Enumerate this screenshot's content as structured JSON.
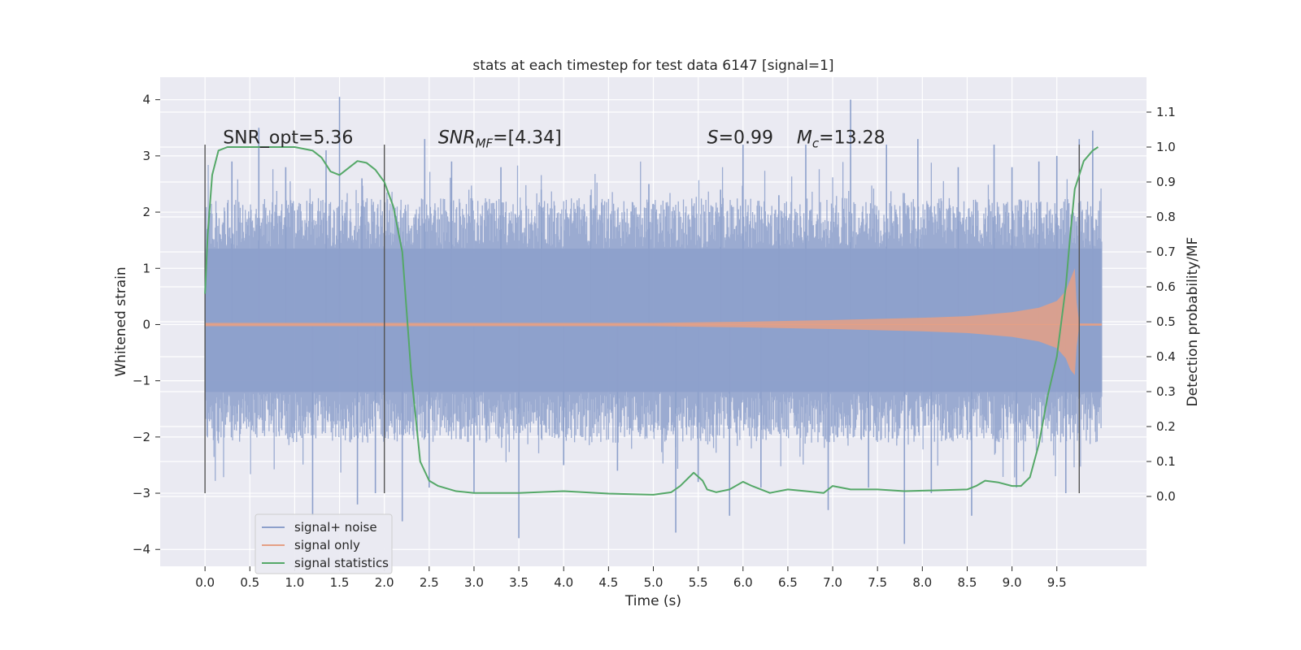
{
  "chart_data": {
    "type": "line",
    "title": "stats at each timestep for test data 6147 [signal=1]",
    "xlabel": "Time (s)",
    "ylabel": "Whitened strain",
    "y2label": "Detection probability/MF",
    "xlim": [
      -0.5,
      10.5
    ],
    "ylim": [
      -4.3,
      4.4
    ],
    "y2lim": [
      -0.2,
      1.2
    ],
    "x_ticks": [
      0.0,
      0.5,
      1.0,
      1.5,
      2.0,
      2.5,
      3.0,
      3.5,
      4.0,
      4.5,
      5.0,
      5.5,
      6.0,
      6.5,
      7.0,
      7.5,
      8.0,
      8.5,
      9.0,
      9.5
    ],
    "x_tick_labels": [
      "0.0",
      "0.5",
      "1.0",
      "1.5",
      "2.0",
      "2.5",
      "3.0",
      "3.5",
      "4.0",
      "4.5",
      "5.0",
      "5.5",
      "6.0",
      "6.5",
      "7.0",
      "7.5",
      "8.0",
      "8.5",
      "9.0",
      "9.5"
    ],
    "y_ticks": [
      -4,
      -3,
      -2,
      -1,
      0,
      1,
      2,
      3,
      4
    ],
    "y_tick_labels": [
      "−4",
      "−3",
      "−2",
      "−1",
      "0",
      "1",
      "2",
      "3",
      "4"
    ],
    "y2_ticks": [
      0.0,
      0.1,
      0.2,
      0.3,
      0.4,
      0.5,
      0.6,
      0.7,
      0.8,
      0.9,
      1.0,
      1.1
    ],
    "y2_tick_labels": [
      "0.0",
      "0.1",
      "0.2",
      "0.3",
      "0.4",
      "0.5",
      "0.6",
      "0.7",
      "0.8",
      "0.9",
      "1.0",
      "1.1"
    ],
    "grid": true,
    "legend_position": "lower-left",
    "colors": {
      "noise": "#8da0cb",
      "signal": "#e5a085",
      "stats": "#55a868",
      "vline": "#555555",
      "background": "#eaeaf2"
    },
    "series": [
      {
        "name": "signal+ noise",
        "role": "noise",
        "axis": "left",
        "x_range": [
          0.0,
          10.0
        ],
        "samples": 1400,
        "envelope": {
          "x": [
            0.0,
            10.0
          ],
          "upper": [
            1.35,
            1.35
          ],
          "lower": [
            -1.2,
            -1.2
          ]
        },
        "spikes": [
          [
            0.3,
            2.9
          ],
          [
            0.6,
            3.5
          ],
          [
            0.9,
            2.8
          ],
          [
            1.2,
            -3.4
          ],
          [
            1.35,
            3.1
          ],
          [
            1.5,
            4.05
          ],
          [
            1.7,
            -3.2
          ],
          [
            1.75,
            2.6
          ],
          [
            1.9,
            -3.0
          ],
          [
            2.2,
            -3.5
          ],
          [
            2.45,
            3.3
          ],
          [
            2.5,
            -2.9
          ],
          [
            2.75,
            2.9
          ],
          [
            3.0,
            -3.0
          ],
          [
            3.3,
            2.8
          ],
          [
            3.5,
            -3.8
          ],
          [
            3.75,
            2.4
          ],
          [
            4.0,
            -2.5
          ],
          [
            4.3,
            2.3
          ],
          [
            4.6,
            -2.6
          ],
          [
            4.95,
            2.5
          ],
          [
            5.25,
            -3.7
          ],
          [
            5.5,
            -2.8
          ],
          [
            5.75,
            2.4
          ],
          [
            5.85,
            -3.4
          ],
          [
            6.0,
            3.2
          ],
          [
            6.2,
            -2.9
          ],
          [
            6.4,
            2.3
          ],
          [
            6.7,
            3.2
          ],
          [
            6.95,
            -3.3
          ],
          [
            7.2,
            4.0
          ],
          [
            7.4,
            -2.9
          ],
          [
            7.6,
            3.2
          ],
          [
            7.8,
            -3.9
          ],
          [
            7.95,
            3.3
          ],
          [
            8.1,
            -3.0
          ],
          [
            8.4,
            2.8
          ],
          [
            8.55,
            -3.4
          ],
          [
            8.8,
            3.2
          ],
          [
            9.0,
            2.8
          ],
          [
            9.05,
            -2.9
          ],
          [
            9.3,
            2.9
          ],
          [
            9.5,
            3.0
          ],
          [
            9.6,
            -3.0
          ],
          [
            9.75,
            3.3
          ],
          [
            9.9,
            3.45
          ]
        ]
      },
      {
        "name": "signal only",
        "role": "signal",
        "axis": "left",
        "envelope": {
          "x": [
            0.0,
            5.0,
            6.0,
            7.0,
            8.0,
            8.5,
            9.0,
            9.3,
            9.5,
            9.6,
            9.65,
            9.7,
            9.72,
            9.75,
            10.0
          ],
          "upper": [
            0.03,
            0.03,
            0.05,
            0.08,
            0.12,
            0.15,
            0.22,
            0.3,
            0.42,
            0.6,
            0.8,
            1.0,
            0.4,
            0.02,
            0.02
          ],
          "lower": [
            -0.03,
            -0.03,
            -0.05,
            -0.08,
            -0.12,
            -0.15,
            -0.22,
            -0.3,
            -0.42,
            -0.6,
            -0.8,
            -0.9,
            -0.4,
            -0.02,
            -0.02
          ]
        }
      },
      {
        "name": "signal statistics",
        "role": "stats",
        "axis": "right",
        "x": [
          0.0,
          0.03,
          0.08,
          0.15,
          0.25,
          0.5,
          1.0,
          1.2,
          1.3,
          1.4,
          1.5,
          1.6,
          1.7,
          1.8,
          1.9,
          2.0,
          2.1,
          2.2,
          2.3,
          2.4,
          2.5,
          2.6,
          2.8,
          3.0,
          3.5,
          4.0,
          4.5,
          5.0,
          5.2,
          5.3,
          5.45,
          5.55,
          5.6,
          5.7,
          5.85,
          6.0,
          6.1,
          6.3,
          6.5,
          6.7,
          6.9,
          7.0,
          7.2,
          7.5,
          7.8,
          8.5,
          8.6,
          8.7,
          8.85,
          9.0,
          9.1,
          9.2,
          9.3,
          9.4,
          9.5,
          9.6,
          9.65,
          9.7,
          9.8,
          9.9,
          9.96
        ],
        "y": [
          0.58,
          0.75,
          0.92,
          0.99,
          1.0,
          1.0,
          1.0,
          0.99,
          0.97,
          0.93,
          0.92,
          0.94,
          0.96,
          0.955,
          0.935,
          0.9,
          0.83,
          0.7,
          0.35,
          0.1,
          0.045,
          0.03,
          0.015,
          0.01,
          0.01,
          0.015,
          0.008,
          0.005,
          0.012,
          0.03,
          0.068,
          0.045,
          0.02,
          0.012,
          0.02,
          0.042,
          0.03,
          0.01,
          0.02,
          0.015,
          0.01,
          0.03,
          0.02,
          0.02,
          0.015,
          0.02,
          0.03,
          0.045,
          0.04,
          0.03,
          0.03,
          0.055,
          0.15,
          0.29,
          0.4,
          0.6,
          0.75,
          0.88,
          0.96,
          0.99,
          1.0
        ]
      }
    ],
    "vlines": [
      {
        "x": 0.0,
        "y_from": -3.0,
        "y_to": 3.2
      },
      {
        "x": 2.0,
        "y_from": -3.0,
        "y_to": 3.2
      },
      {
        "x": 9.75,
        "y_from": -3.0,
        "y_to": 3.2
      }
    ],
    "annotations": [
      {
        "text": "SNR_opt=5.36",
        "x": 0.2,
        "y": 3.22
      },
      {
        "text": "SNR_MF=[4.34]",
        "x": 2.6,
        "y": 3.22
      },
      {
        "text": "S=0.99",
        "x": 5.6,
        "y": 3.22
      },
      {
        "text": "M_c=13.28",
        "x": 6.6,
        "y": 3.22
      }
    ]
  }
}
